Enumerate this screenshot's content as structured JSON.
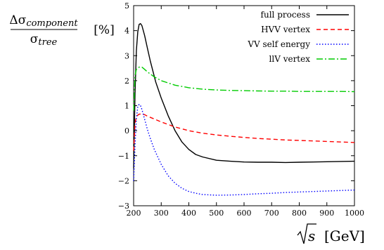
{
  "chart_data": {
    "type": "line",
    "xlim": [
      200,
      1000
    ],
    "ylim": [
      -3,
      5
    ],
    "xticks": [
      "200",
      "300",
      "400",
      "500",
      "600",
      "700",
      "800",
      "900",
      "1000"
    ],
    "yticks": [
      "−3",
      "−2",
      "−1",
      "0",
      "1",
      "2",
      "3",
      "4",
      "5"
    ],
    "ylabel": {
      "num_prefix": "Δσ",
      "num_sub": "component",
      "den_main": "σ",
      "den_sub": "tree",
      "unit": "[%]"
    },
    "xlabel": {
      "var": "s",
      "unit": "[GeV]"
    },
    "grid": false,
    "legend_position": "top-right",
    "series": [
      {
        "name": "full process",
        "color": "#000000",
        "dash": "solid",
        "x": [
          200,
          205,
          210,
          215,
          220,
          225,
          230,
          240,
          250,
          260,
          280,
          300,
          325,
          350,
          375,
          400,
          425,
          450,
          500,
          550,
          600,
          650,
          700,
          750,
          800,
          850,
          900,
          950,
          1000
        ],
        "y": [
          -1.5,
          1.5,
          3.2,
          3.95,
          4.25,
          4.28,
          4.2,
          3.8,
          3.3,
          2.8,
          1.95,
          1.3,
          0.6,
          0.0,
          -0.45,
          -0.75,
          -0.95,
          -1.05,
          -1.18,
          -1.22,
          -1.25,
          -1.26,
          -1.26,
          -1.27,
          -1.26,
          -1.25,
          -1.24,
          -1.23,
          -1.22
        ]
      },
      {
        "name": "HVV vertex",
        "color": "#ff0000",
        "dash": "6,4",
        "x": [
          200,
          205,
          210,
          215,
          220,
          230,
          240,
          250,
          275,
          300,
          350,
          400,
          450,
          500,
          550,
          600,
          650,
          700,
          750,
          800,
          850,
          900,
          950,
          1000
        ],
        "y": [
          -0.8,
          0.3,
          0.55,
          0.62,
          0.66,
          0.67,
          0.64,
          0.58,
          0.47,
          0.35,
          0.15,
          0.0,
          -0.1,
          -0.17,
          -0.22,
          -0.27,
          -0.31,
          -0.34,
          -0.37,
          -0.39,
          -0.41,
          -0.43,
          -0.45,
          -0.47
        ]
      },
      {
        "name": "VV self energy",
        "color": "#0000ff",
        "dash": "1.5,2.5",
        "x": [
          200,
          205,
          210,
          215,
          220,
          225,
          230,
          240,
          250,
          260,
          275,
          300,
          325,
          350,
          375,
          400,
          425,
          450,
          500,
          550,
          600,
          650,
          700,
          750,
          800,
          850,
          900,
          950,
          1000
        ],
        "y": [
          -2.0,
          -0.6,
          0.5,
          0.95,
          1.05,
          1.0,
          0.85,
          0.45,
          0.05,
          -0.3,
          -0.75,
          -1.35,
          -1.8,
          -2.1,
          -2.3,
          -2.43,
          -2.5,
          -2.55,
          -2.58,
          -2.57,
          -2.55,
          -2.52,
          -2.5,
          -2.47,
          -2.45,
          -2.43,
          -2.41,
          -2.39,
          -2.37
        ]
      },
      {
        "name": "llV vertex",
        "color": "#00cc00",
        "dash": "9,3,2,3",
        "x": [
          200,
          205,
          210,
          215,
          220,
          225,
          230,
          240,
          250,
          275,
          300,
          350,
          400,
          450,
          500,
          550,
          600,
          650,
          700,
          750,
          800,
          850,
          900,
          950,
          1000
        ],
        "y": [
          0.8,
          2.2,
          2.45,
          2.5,
          2.54,
          2.55,
          2.54,
          2.45,
          2.35,
          2.15,
          2.0,
          1.82,
          1.72,
          1.66,
          1.63,
          1.61,
          1.6,
          1.59,
          1.58,
          1.58,
          1.57,
          1.57,
          1.57,
          1.57,
          1.56
        ]
      }
    ]
  }
}
